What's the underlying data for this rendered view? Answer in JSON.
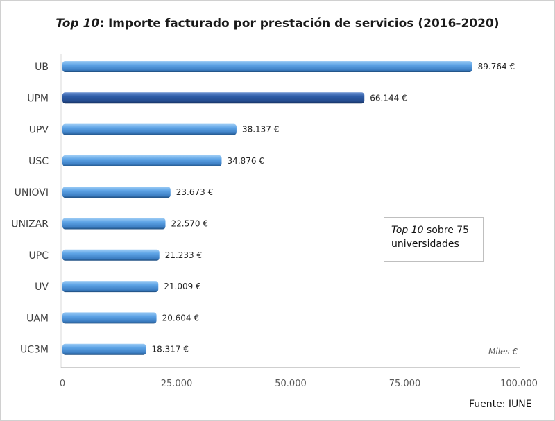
{
  "chart_data": {
    "type": "bar",
    "orientation": "horizontal",
    "title_italic": "Top 10",
    "title_rest": ": Importe facturado por prestación de servicios (2016-2020)",
    "categories": [
      "UB",
      "UPM",
      "UPV",
      "USC",
      "UNIOVI",
      "UNIZAR",
      "UPC",
      "UV",
      "UAM",
      "UC3M"
    ],
    "values": [
      89764,
      66144,
      38137,
      34876,
      23673,
      22570,
      21233,
      21009,
      20604,
      18317
    ],
    "data_labels": [
      "89.764 €",
      "66.144 €",
      "38.137 €",
      "34.876 €",
      "23.673 €",
      "22.570 €",
      "21.233 €",
      "21.009 €",
      "20.604 €",
      "18.317 €"
    ],
    "highlight_category": "UPM",
    "xlim": [
      0,
      100000
    ],
    "x_ticks": [
      0,
      25000,
      50000,
      75000,
      100000
    ],
    "x_tick_labels": [
      "0",
      "25.000",
      "50.000",
      "75.000",
      "100.000"
    ],
    "unit_label": "Miles €",
    "grid": false,
    "colors": {
      "bar": "#5b9bd5",
      "highlight": "#2e5597"
    }
  },
  "note": {
    "italic": "Top 10",
    "rest": " sobre 75 universidades"
  },
  "source": "Fuente: IUNE"
}
